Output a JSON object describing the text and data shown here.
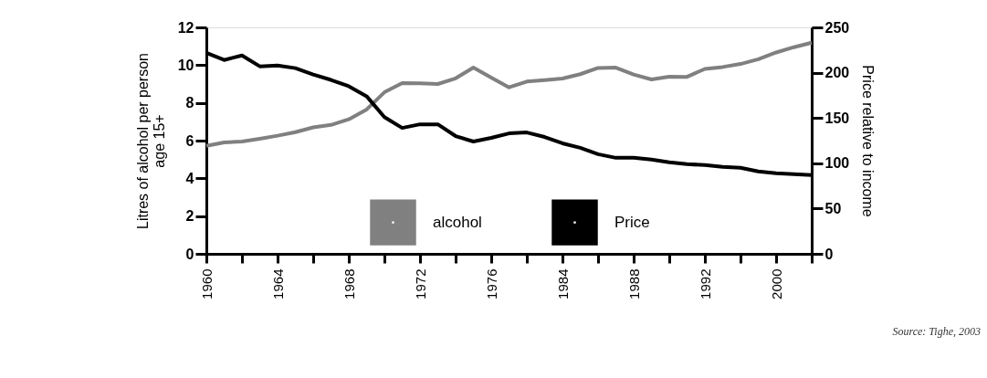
{
  "chart_data": {
    "type": "line",
    "categories": [
      "1960",
      null,
      null,
      null,
      "1964",
      null,
      null,
      null,
      "1968",
      null,
      null,
      null,
      "1972",
      null,
      null,
      null,
      "1976",
      null,
      null,
      null,
      "1984",
      null,
      null,
      null,
      "1988",
      null,
      null,
      null,
      "1992",
      null,
      null,
      null,
      "2000",
      null,
      null
    ],
    "ylabel": "Litres of alcohol per person age 15+",
    "ylim": [
      0,
      12
    ],
    "yticks": [
      0,
      2,
      4,
      6,
      8,
      10,
      12
    ],
    "y2label": "Price relative to income",
    "y2lim": [
      0,
      250
    ],
    "y2ticks": [
      0,
      50,
      100,
      150,
      200,
      250
    ],
    "grid": false,
    "legend": "bottom",
    "line_style": "solid",
    "marker": "none",
    "series": [
      {
        "name": "alcohol",
        "color": "#808080",
        "values": [
          5.72,
          5.9,
          5.95,
          6.1,
          6.26,
          6.45,
          6.7,
          6.83,
          7.13,
          7.65,
          8.56,
          9.05,
          9.04,
          9.0,
          9.3,
          9.87,
          9.34,
          8.82,
          9.13,
          9.21,
          9.29,
          9.52,
          9.85,
          9.87,
          9.5,
          9.24,
          9.39,
          9.38,
          9.8,
          9.9,
          10.06,
          10.31,
          10.67,
          10.95,
          11.19
        ]
      },
      {
        "name": "Price",
        "color": "#000000",
        "axis": "y2",
        "values": [
          222,
          214,
          219,
          207,
          208,
          205,
          198,
          192,
          185,
          174,
          151,
          139,
          143,
          143,
          130,
          124,
          128,
          133,
          134,
          129,
          122,
          117,
          110,
          106,
          106,
          104,
          101,
          99,
          98,
          96,
          95,
          91,
          89,
          88,
          87
        ]
      }
    ],
    "annotations": [
      "Source: Tighe, 2003"
    ]
  }
}
